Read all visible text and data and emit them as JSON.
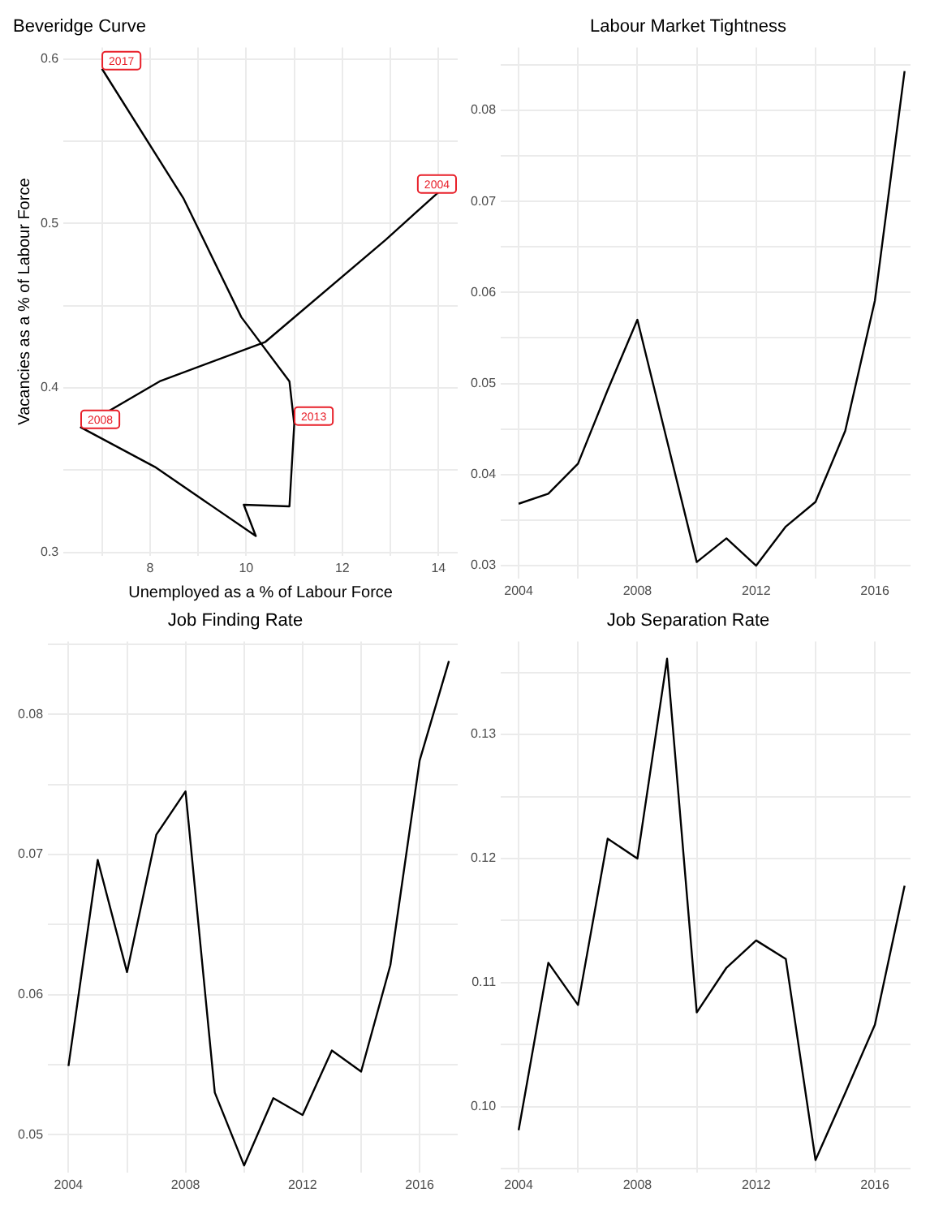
{
  "chart_data": [
    {
      "type": "line",
      "title": "Beveridge Curve",
      "xlabel": "Unemployed as a % of Labour Force",
      "ylabel": "Vacancies as a % of Labour Force",
      "series": [
        {
          "color": "#000000",
          "x": [
            14.0,
            12.9,
            10.4,
            8.2,
            6.56,
            8.1,
            10.2,
            9.95,
            10.9,
            11.0,
            10.9,
            9.9,
            8.7,
            7.0
          ],
          "values": [
            0.519,
            0.49,
            0.428,
            0.404,
            0.376,
            0.352,
            0.31,
            0.329,
            0.328,
            0.378,
            0.404,
            0.443,
            0.515,
            0.594
          ]
        }
      ],
      "xlim": [
        6.2,
        14.4
      ],
      "ylim": [
        0.298,
        0.607
      ],
      "xticks": [
        {
          "value": 7,
          "label": null
        },
        8,
        {
          "value": 9,
          "label": null
        },
        10,
        {
          "value": 11,
          "label": null
        },
        12,
        {
          "value": 13,
          "label": null
        },
        14
      ],
      "yticks": [
        {
          "value": 0.3,
          "label": "0.3"
        },
        {
          "value": 0.35,
          "label": null
        },
        0.4,
        {
          "value": 0.45,
          "label": null
        },
        0.5,
        {
          "value": 0.55,
          "label": null
        },
        0.6
      ],
      "grid": true,
      "legend": false,
      "annotations": [
        {
          "text": "2017",
          "x": 7.0,
          "y": 0.594
        },
        {
          "text": "2004",
          "x": 14.0,
          "y": 0.519
        },
        {
          "text": "2008",
          "x": 6.56,
          "y": 0.376
        },
        {
          "text": "2013",
          "x": 11.0,
          "y": 0.378
        }
      ]
    },
    {
      "type": "line",
      "title": "Labour Market Tightness",
      "series": [
        {
          "color": "#000000",
          "x": [
            2004,
            2005,
            2006,
            2007,
            2008,
            2009,
            2010,
            2011,
            2012,
            2013,
            2014,
            2015,
            2016,
            2017
          ],
          "values": [
            0.0368,
            0.0379,
            0.0412,
            0.0493,
            0.057,
            0.0437,
            0.0304,
            0.033,
            0.03,
            0.0343,
            0.037,
            0.0448,
            0.0591,
            0.0843
          ]
        }
      ],
      "xlim": [
        2003.4,
        2017.2
      ],
      "ylim": [
        0.0286,
        0.0869
      ],
      "xticks": [
        2004,
        {
          "value": 2006,
          "label": null
        },
        2008,
        {
          "value": 2010,
          "label": null
        },
        2012,
        {
          "value": 2014,
          "label": null
        },
        2016
      ],
      "yticks": [
        0.03,
        {
          "value": 0.035,
          "label": null
        },
        0.04,
        {
          "value": 0.045,
          "label": null
        },
        0.05,
        {
          "value": 0.055,
          "label": null
        },
        0.06,
        {
          "value": 0.065,
          "label": null
        },
        0.07,
        {
          "value": 0.075,
          "label": null
        },
        0.08,
        {
          "value": 0.085,
          "label": null
        }
      ],
      "grid": true,
      "legend": false
    },
    {
      "type": "line",
      "title": "Job Finding Rate",
      "series": [
        {
          "color": "#000000",
          "x": [
            2004,
            2005,
            2006,
            2007,
            2008,
            2009,
            2010,
            2011,
            2012,
            2013,
            2014,
            2015,
            2016,
            2017
          ],
          "values": [
            0.0549,
            0.0696,
            0.0616,
            0.0714,
            0.0745,
            0.053,
            0.0478,
            0.0526,
            0.0514,
            0.056,
            0.0545,
            0.0621,
            0.0767,
            0.0838
          ]
        }
      ],
      "xlim": [
        2003.3,
        2017.3
      ],
      "ylim": [
        0.0473,
        0.0852
      ],
      "xticks": [
        2004,
        {
          "value": 2006,
          "label": null
        },
        2008,
        {
          "value": 2010,
          "label": null
        },
        2012,
        {
          "value": 2014,
          "label": null
        },
        2016
      ],
      "yticks": [
        0.05,
        {
          "value": 0.055,
          "label": null
        },
        0.06,
        {
          "value": 0.065,
          "label": null
        },
        0.07,
        {
          "value": 0.075,
          "label": null
        },
        0.08,
        {
          "value": 0.085,
          "label": null
        }
      ],
      "grid": true,
      "legend": false
    },
    {
      "type": "line",
      "title": "Job Separation Rate",
      "series": [
        {
          "color": "#000000",
          "x": [
            2004,
            2005,
            2006,
            2007,
            2008,
            2009,
            2010,
            2011,
            2012,
            2013,
            2014,
            2015,
            2016,
            2017
          ],
          "values": [
            0.0981,
            0.1116,
            0.1082,
            0.1216,
            0.12,
            0.1361,
            0.1076,
            0.1112,
            0.1134,
            0.1119,
            0.0957,
            0.1011,
            0.1066,
            0.1178
          ]
        }
      ],
      "xlim": [
        2003.4,
        2017.2
      ],
      "ylim": [
        0.0947,
        0.1375
      ],
      "xticks": [
        2004,
        {
          "value": 2006,
          "label": null
        },
        2008,
        {
          "value": 2010,
          "label": null
        },
        2012,
        {
          "value": 2014,
          "label": null
        },
        2016
      ],
      "yticks": [
        {
          "value": 0.095,
          "label": null
        },
        {
          "value": 0.1,
          "label": "0.10"
        },
        {
          "value": 0.105,
          "label": null
        },
        0.11,
        {
          "value": 0.115,
          "label": null
        },
        0.12,
        {
          "value": 0.125,
          "label": null
        },
        0.13,
        {
          "value": 0.135,
          "label": null
        }
      ],
      "grid": true,
      "legend": false
    }
  ]
}
